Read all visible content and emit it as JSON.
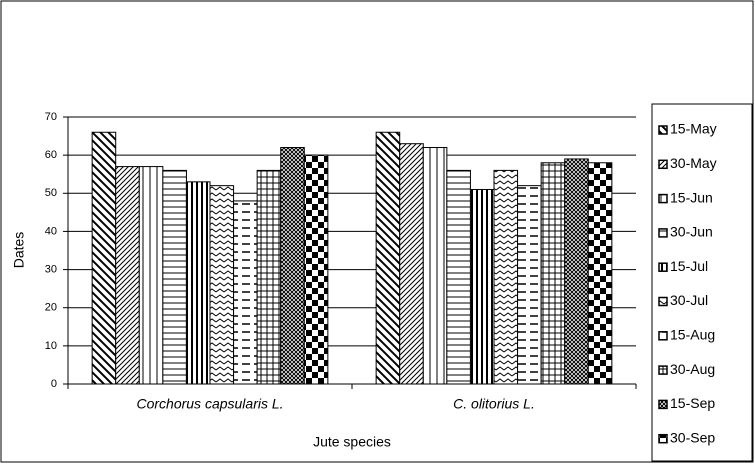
{
  "chart_data": {
    "type": "bar",
    "x_label": "Jute species",
    "y_label": "Dates",
    "categories": [
      "Corchorus capsularis L.",
      "C. olitorius L."
    ],
    "series": [
      {
        "name": "15-May",
        "color": "#000000",
        "values": [
          66,
          66
        ]
      },
      {
        "name": "30-May",
        "color": "#000000",
        "values": [
          57,
          63
        ]
      },
      {
        "name": "15-Jun",
        "color": "#000000",
        "values": [
          57,
          62
        ]
      },
      {
        "name": "30-Jun",
        "color": "#000000",
        "values": [
          56,
          56
        ]
      },
      {
        "name": "15-Jul",
        "color": "#000000",
        "values": [
          53,
          51
        ]
      },
      {
        "name": "30-Jul",
        "color": "#000000",
        "values": [
          52,
          56
        ]
      },
      {
        "name": "15-Aug",
        "color": "#000000",
        "values": [
          48,
          52
        ]
      },
      {
        "name": "30-Aug",
        "color": "#000000",
        "values": [
          56,
          58
        ]
      },
      {
        "name": "15-Sep",
        "color": "#000000",
        "values": [
          62,
          59
        ]
      },
      {
        "name": "30-Sep",
        "color": "#000000",
        "values": [
          60,
          58
        ]
      }
    ],
    "ylim": [
      0,
      70
    ],
    "yticks": [
      0,
      10,
      20,
      30,
      40,
      50,
      60,
      70
    ],
    "grid": true,
    "legend": "right"
  }
}
